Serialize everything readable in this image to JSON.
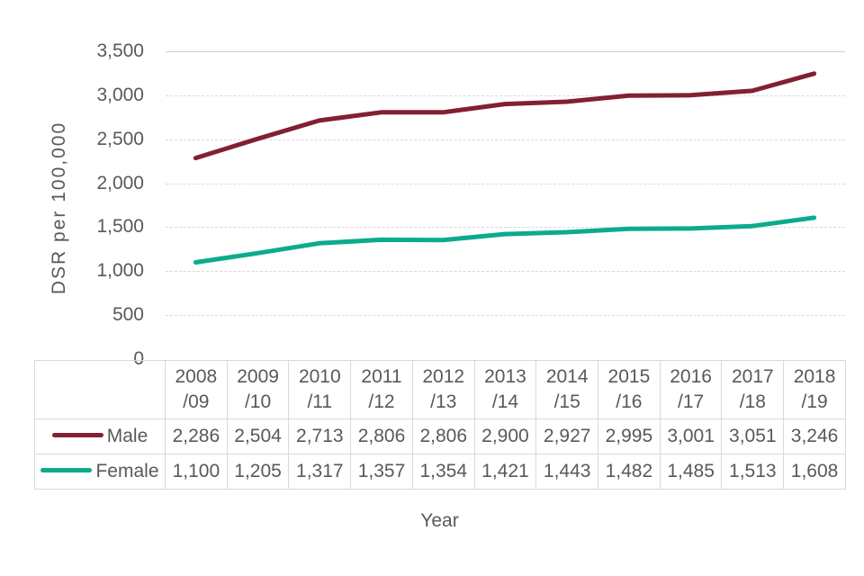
{
  "colors": {
    "background": "#ffffff",
    "text": "#595959",
    "gridline": "#d9d9d9",
    "table_border": "#d9d9d9",
    "male_series": "#822032",
    "female_series": "#0bab8c"
  },
  "chart_data": {
    "type": "line",
    "title": "",
    "xlabel": "Year",
    "ylabel": "DSR per 100,000",
    "categories": [
      "2008/09",
      "2009/10",
      "2010/11",
      "2011/12",
      "2012/13",
      "2013/14",
      "2014/15",
      "2015/16",
      "2016/17",
      "2017/18",
      "2018/19"
    ],
    "series": [
      {
        "name": "Male",
        "color": "#822032",
        "values": [
          2286,
          2504,
          2713,
          2806,
          2806,
          2900,
          2927,
          2995,
          3001,
          3051,
          3246
        ],
        "values_formatted": [
          "2,286",
          "2,504",
          "2,713",
          "2,806",
          "2,806",
          "2,900",
          "2,927",
          "2,995",
          "3,001",
          "3,051",
          "3,246"
        ]
      },
      {
        "name": "Female",
        "color": "#0bab8c",
        "values": [
          1100,
          1205,
          1317,
          1357,
          1354,
          1421,
          1443,
          1482,
          1485,
          1513,
          1608
        ],
        "values_formatted": [
          "1,100",
          "1,205",
          "1,317",
          "1,357",
          "1,354",
          "1,421",
          "1,443",
          "1,482",
          "1,485",
          "1,513",
          "1,608"
        ]
      }
    ],
    "ylim": [
      0,
      3500
    ],
    "yticks": [
      0,
      500,
      1000,
      1500,
      2000,
      2500,
      3000,
      3500
    ],
    "ytick_labels": [
      "0",
      "500",
      "1,000",
      "1,500",
      "2,000",
      "2,500",
      "3,000",
      "3,500"
    ],
    "grid": true,
    "legend_position": "row headers on left side of data table below chart"
  }
}
